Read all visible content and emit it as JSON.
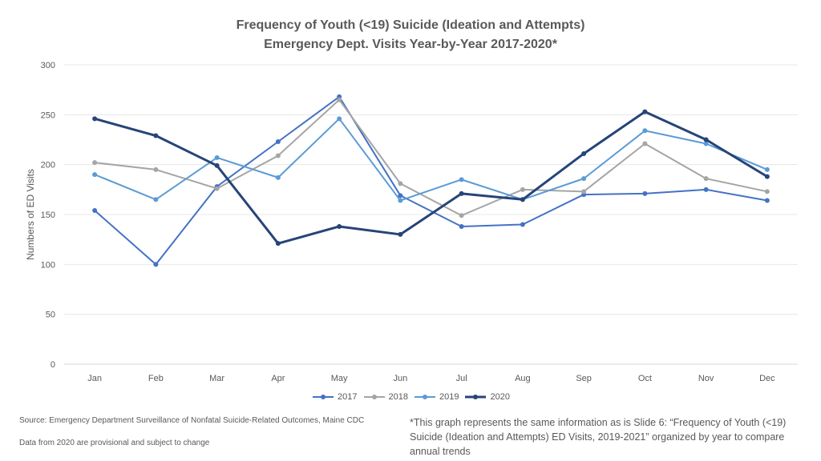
{
  "chart_data": {
    "type": "line",
    "title": "Frequency of Youth (<19) Suicide (Ideation and Attempts)",
    "subtitle": "Emergency Dept. Visits Year-by-Year 2017-2020*",
    "ylabel": "Numbers of ED Visits",
    "xlabel": "",
    "ylim": [
      0,
      300
    ],
    "yticks": [
      0,
      50,
      100,
      150,
      200,
      250,
      300
    ],
    "grid": true,
    "legend": "bottom",
    "categories": [
      "Jan",
      "Feb",
      "Mar",
      "Apr",
      "May",
      "Jun",
      "Jul",
      "Aug",
      "Sep",
      "Oct",
      "Nov",
      "Dec"
    ],
    "series": [
      {
        "name": "2017",
        "color": "#4472C4",
        "width": 2,
        "values": [
          154,
          100,
          178,
          223,
          268,
          169,
          138,
          140,
          170,
          171,
          175,
          164
        ]
      },
      {
        "name": "2018",
        "color": "#A5A5A5",
        "width": 2,
        "values": [
          202,
          195,
          176,
          209,
          265,
          181,
          149,
          175,
          173,
          221,
          186,
          173
        ]
      },
      {
        "name": "2019",
        "color": "#5B9BD5",
        "width": 2,
        "values": [
          190,
          165,
          207,
          187,
          246,
          164,
          185,
          165,
          186,
          234,
          221,
          195
        ]
      },
      {
        "name": "2020",
        "color": "#264478",
        "width": 3,
        "values": [
          246,
          229,
          199,
          121,
          138,
          130,
          171,
          165,
          211,
          253,
          225,
          188
        ]
      }
    ]
  },
  "footer": {
    "source": "Source:  Emergency Department Surveillance of Nonfatal Suicide-Related Outcomes, Maine CDC",
    "provisional": "Data from 2020 are provisional and subject to change",
    "note": "*This graph represents the same information as is Slide 6: “Frequency of Youth (<19) Suicide (Ideation and Attempts)  ED Visits, 2019-2021” organized by year to compare annual trends"
  }
}
